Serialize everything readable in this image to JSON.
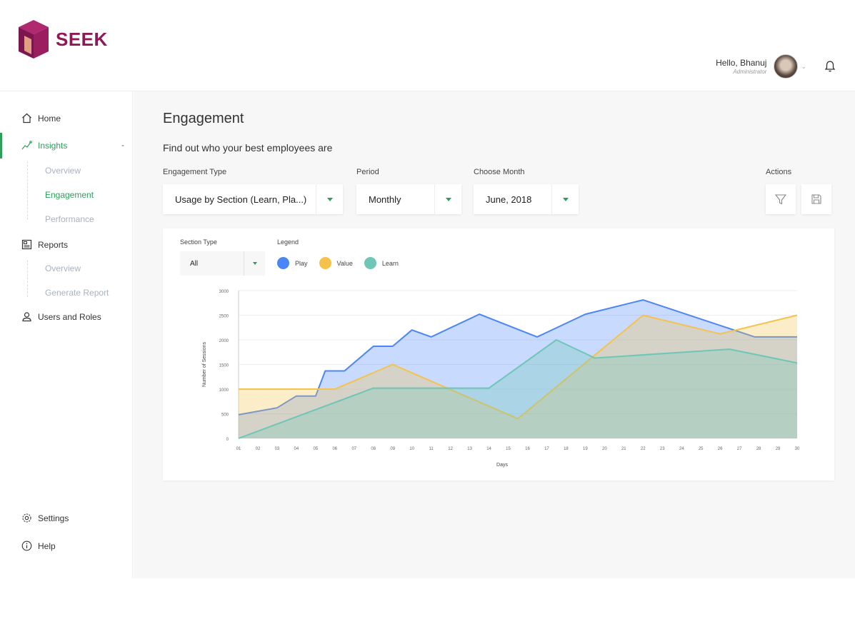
{
  "brand": {
    "name": "SEEK"
  },
  "user": {
    "greeting": "Hello, Bhanuj",
    "role": "Administrator"
  },
  "sidebar": {
    "items": [
      {
        "label": "Home"
      },
      {
        "label": "Insights",
        "collapse": "-"
      },
      {
        "label": "Overview"
      },
      {
        "label": "Engagement"
      },
      {
        "label": "Performance"
      },
      {
        "label": "Reports"
      },
      {
        "label": "Overview"
      },
      {
        "label": "Generate Report"
      },
      {
        "label": "Users and Roles"
      },
      {
        "label": "Settings"
      },
      {
        "label": "Help"
      }
    ]
  },
  "page": {
    "title": "Engagement",
    "subtitle": "Find out who your best employees are"
  },
  "filters": {
    "engagement_type": {
      "label": "Engagement Type",
      "value": "Usage by Section (Learn, Pla...)"
    },
    "period": {
      "label": "Period",
      "value": "Monthly"
    },
    "month": {
      "label": "Choose Month",
      "value": "June, 2018"
    },
    "actions_label": "Actions"
  },
  "card": {
    "section_type_label": "Section Type",
    "section_type_value": "All",
    "legend_label": "Legend"
  },
  "colors": {
    "accent": "#2e9e5b",
    "brand": "#8e1a55",
    "play": "#4a86f7",
    "value": "#f5c24c",
    "learn": "#6ec6b6"
  },
  "chart_data": {
    "type": "area",
    "xlabel": "Days",
    "ylabel": "Number of Sessions",
    "x": [
      "01",
      "02",
      "03",
      "04",
      "05",
      "06",
      "07",
      "08",
      "09",
      "10",
      "11",
      "12",
      "13",
      "14",
      "15",
      "16",
      "17",
      "18",
      "19",
      "20",
      "21",
      "22",
      "23",
      "24",
      "25",
      "26",
      "27",
      "28",
      "29",
      "30"
    ],
    "xlim": [
      1,
      30
    ],
    "ylim": [
      0,
      3000
    ],
    "yticks": [
      "3000",
      "2500",
      "2000",
      "1500",
      "1000",
      "500",
      "0"
    ],
    "grid": true,
    "legend_position": "top-left",
    "series": [
      {
        "name": "Play",
        "color": "#4a86f7",
        "points": [
          [
            1,
            480
          ],
          [
            3,
            620
          ],
          [
            4,
            860
          ],
          [
            5,
            860
          ],
          [
            5.5,
            1370
          ],
          [
            6.5,
            1370
          ],
          [
            8,
            1870
          ],
          [
            9,
            1870
          ],
          [
            10,
            2200
          ],
          [
            11,
            2060
          ],
          [
            13.5,
            2520
          ],
          [
            16.5,
            2060
          ],
          [
            19,
            2520
          ],
          [
            22,
            2810
          ],
          [
            27.8,
            2060
          ],
          [
            30,
            2060
          ]
        ]
      },
      {
        "name": "Value",
        "color": "#f5c24c",
        "points": [
          [
            1,
            1000
          ],
          [
            6,
            1000
          ],
          [
            9,
            1500
          ],
          [
            15.5,
            400
          ],
          [
            22,
            2500
          ],
          [
            26,
            2120
          ],
          [
            30,
            2500
          ]
        ]
      },
      {
        "name": "Learn",
        "color": "#6ec6b6",
        "points": [
          [
            1,
            0
          ],
          [
            8,
            1020
          ],
          [
            14,
            1020
          ],
          [
            17.5,
            2000
          ],
          [
            19.5,
            1630
          ],
          [
            26.5,
            1810
          ],
          [
            30,
            1530
          ]
        ]
      }
    ]
  }
}
